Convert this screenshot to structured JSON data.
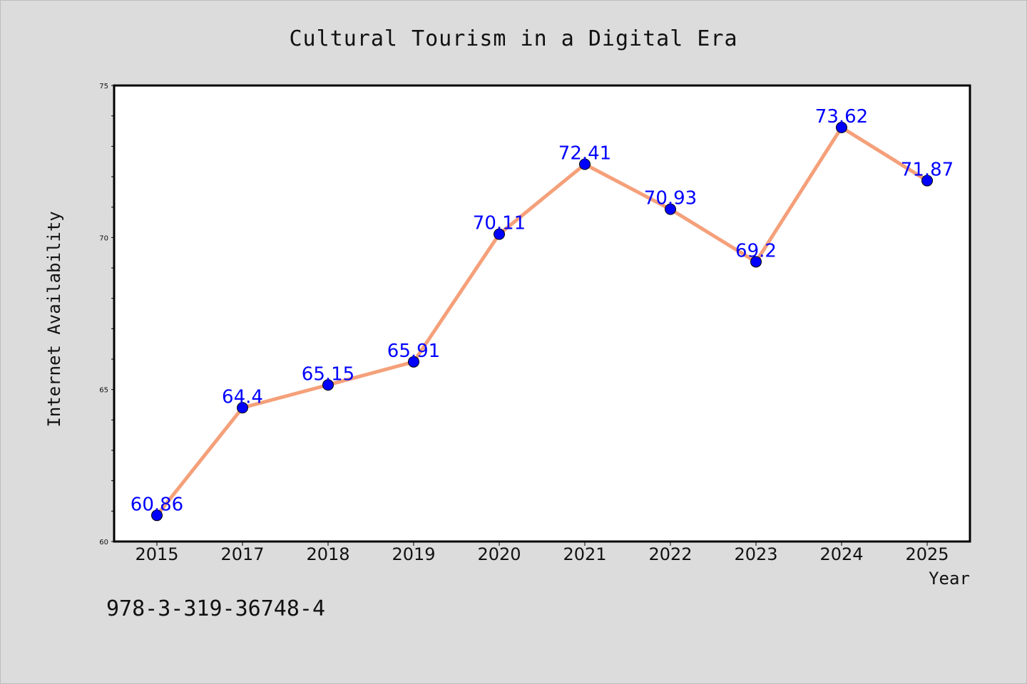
{
  "chart_data": {
    "type": "line",
    "title": "Cultural Tourism in a Digital Era",
    "xlabel": "Year",
    "ylabel": "Internet Availability",
    "categories": [
      "2015",
      "2017",
      "2018",
      "2019",
      "2020",
      "2021",
      "2022",
      "2023",
      "2024",
      "2025"
    ],
    "values": [
      60.86,
      64.4,
      65.15,
      65.91,
      70.11,
      72.41,
      70.93,
      69.2,
      73.62,
      71.87
    ],
    "data_labels": [
      "60.86",
      "64.4",
      "65.15",
      "65.91",
      "70.11",
      "72.41",
      "70.93",
      "69.2",
      "73.62",
      "71.87"
    ],
    "ylim": [
      60,
      75
    ],
    "y_ticks": [
      60,
      65,
      70,
      75
    ],
    "y_minor_step": 1,
    "grid": false,
    "line_color": "#f5a07a",
    "marker_color": "#0000ff",
    "label_color": "#0000ff",
    "background_color": "#dcdcdc",
    "plot_background": "#ffffff"
  },
  "footer": {
    "code": "978-3-319-36748-4"
  }
}
